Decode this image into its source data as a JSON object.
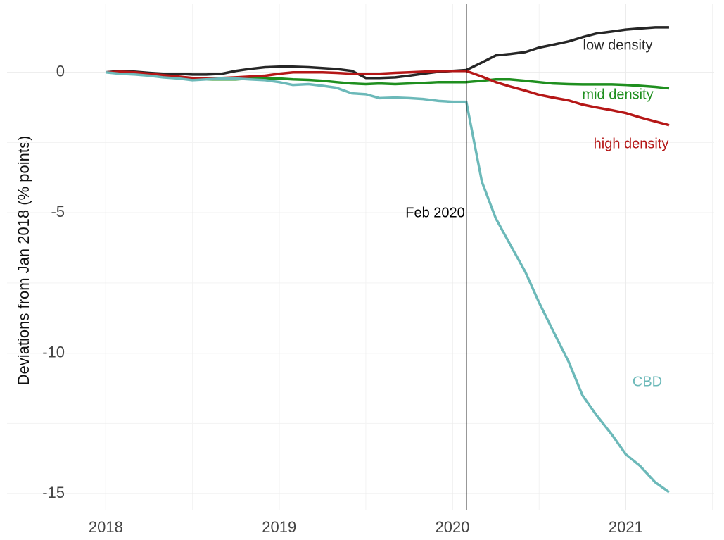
{
  "chart_data": {
    "type": "line",
    "y_label": "Deviations from Jan 2018 (% points)",
    "x": [
      2018.0,
      2018.08,
      2018.17,
      2018.25,
      2018.33,
      2018.42,
      2018.5,
      2018.58,
      2018.67,
      2018.75,
      2018.83,
      2018.92,
      2019.0,
      2019.08,
      2019.17,
      2019.25,
      2019.33,
      2019.42,
      2019.5,
      2019.58,
      2019.67,
      2019.75,
      2019.83,
      2019.92,
      2020.0,
      2020.08,
      2020.17,
      2020.25,
      2020.33,
      2020.42,
      2020.5,
      2020.58,
      2020.67,
      2020.75,
      2020.83,
      2020.92,
      2021.0,
      2021.08,
      2021.17,
      2021.25
    ],
    "series": [
      {
        "name": "low density",
        "color": "#262626",
        "values": [
          0,
          0.05,
          0.02,
          -0.02,
          -0.05,
          -0.05,
          -0.08,
          -0.08,
          -0.05,
          0.05,
          0.12,
          0.18,
          0.2,
          0.2,
          0.18,
          0.15,
          0.12,
          0.05,
          -0.2,
          -0.2,
          -0.18,
          -0.12,
          -0.05,
          0.02,
          0.05,
          0.08,
          0.35,
          0.6,
          0.65,
          0.72,
          0.88,
          0.98,
          1.1,
          1.25,
          1.38,
          1.45,
          1.52,
          1.56,
          1.6,
          1.6
        ]
      },
      {
        "name": "mid density",
        "color": "#1f8f1f",
        "values": [
          0,
          0,
          -0.05,
          -0.1,
          -0.15,
          -0.2,
          -0.22,
          -0.25,
          -0.25,
          -0.25,
          -0.22,
          -0.22,
          -0.22,
          -0.25,
          -0.27,
          -0.3,
          -0.35,
          -0.4,
          -0.42,
          -0.4,
          -0.42,
          -0.4,
          -0.38,
          -0.35,
          -0.35,
          -0.35,
          -0.3,
          -0.25,
          -0.25,
          -0.3,
          -0.35,
          -0.4,
          -0.42,
          -0.43,
          -0.43,
          -0.43,
          -0.45,
          -0.48,
          -0.52,
          -0.57
        ]
      },
      {
        "name": "high density",
        "color": "#b51717",
        "values": [
          0,
          0.02,
          0,
          -0.05,
          -0.1,
          -0.15,
          -0.2,
          -0.22,
          -0.2,
          -0.18,
          -0.15,
          -0.12,
          -0.05,
          0,
          0,
          0,
          -0.02,
          -0.05,
          -0.05,
          -0.05,
          -0.02,
          0,
          0.02,
          0.05,
          0.05,
          0.05,
          -0.15,
          -0.35,
          -0.5,
          -0.65,
          -0.8,
          -0.9,
          -1.0,
          -1.15,
          -1.25,
          -1.35,
          -1.45,
          -1.6,
          -1.75,
          -1.88
        ]
      },
      {
        "name": "CBD",
        "color": "#6cb9b9",
        "values": [
          0,
          -0.05,
          -0.08,
          -0.12,
          -0.18,
          -0.22,
          -0.28,
          -0.25,
          -0.22,
          -0.22,
          -0.25,
          -0.28,
          -0.35,
          -0.45,
          -0.42,
          -0.48,
          -0.55,
          -0.75,
          -0.78,
          -0.92,
          -0.9,
          -0.92,
          -0.95,
          -1.02,
          -1.05,
          -1.05,
          -3.9,
          -5.2,
          -6.1,
          -7.1,
          -8.2,
          -9.2,
          -10.3,
          -11.5,
          -12.2,
          -12.9,
          -13.6,
          -14.0,
          -14.6,
          -14.95
        ]
      }
    ],
    "vline": {
      "x": 2020.08,
      "label": "Feb 2020"
    },
    "xlim": [
      2017.43,
      2021.51
    ],
    "ylim": [
      -15.6,
      2.45
    ],
    "xticks": [
      2018,
      2019,
      2020,
      2021
    ],
    "yticks": [
      0,
      -5,
      -10,
      -15
    ],
    "xminor": [
      2018.5,
      2019.5,
      2020.5,
      2021.5
    ],
    "yminor": [
      -2.5,
      -7.5,
      -12.5
    ],
    "grid": true
  }
}
